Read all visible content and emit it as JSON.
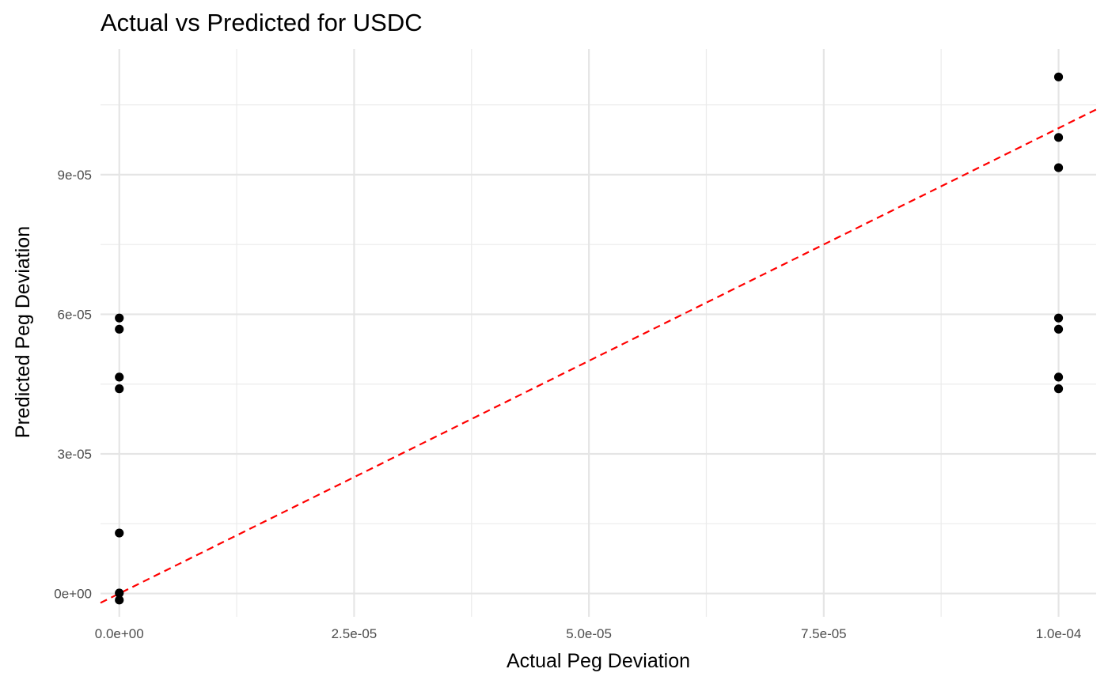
{
  "chart_data": {
    "type": "scatter",
    "title": "Actual vs Predicted for USDC",
    "xlabel": "Actual Peg Deviation",
    "ylabel": "Predicted Peg Deviation",
    "xlim": [
      -2e-06,
      0.000104
    ],
    "ylim": [
      -5e-06,
      0.000117
    ],
    "x_ticks": [
      0,
      2.5e-05,
      5e-05,
      7.5e-05,
      0.0001
    ],
    "x_tick_labels": [
      "0.0e+00",
      "2.5e-05",
      "5.0e-05",
      "7.5e-05",
      "1.0e-04"
    ],
    "y_ticks": [
      0,
      3e-05,
      6e-05,
      9e-05
    ],
    "y_tick_labels": [
      "0e+00",
      "3e-05",
      "6e-05",
      "9e-05"
    ],
    "points": [
      {
        "x": 0,
        "y": -1.4e-06
      },
      {
        "x": 0,
        "y": 1e-07
      },
      {
        "x": 0,
        "y": 1.3e-05
      },
      {
        "x": 0,
        "y": 4.4e-05
      },
      {
        "x": 0,
        "y": 4.65e-05
      },
      {
        "x": 0,
        "y": 5.68e-05
      },
      {
        "x": 0,
        "y": 5.92e-05
      },
      {
        "x": 0.0001,
        "y": 4.4e-05
      },
      {
        "x": 0.0001,
        "y": 4.65e-05
      },
      {
        "x": 0.0001,
        "y": 5.68e-05
      },
      {
        "x": 0.0001,
        "y": 5.92e-05
      },
      {
        "x": 0.0001,
        "y": 9.15e-05
      },
      {
        "x": 0.0001,
        "y": 9.8e-05
      },
      {
        "x": 0.0001,
        "y": 0.000111
      }
    ],
    "reference_line": {
      "slope": 1,
      "intercept": 0,
      "style": "dashed",
      "color": "#ff0000"
    },
    "point_color": "#000000",
    "grid": true,
    "legend": "none"
  }
}
